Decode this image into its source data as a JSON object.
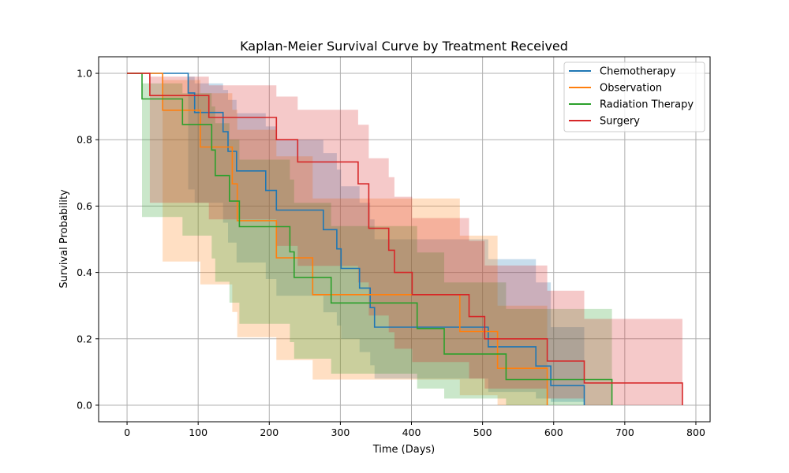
{
  "chart_data": {
    "type": "line",
    "subtype": "kaplan-meier-step",
    "title": "Kaplan-Meier Survival Curve by Treatment Received",
    "xlabel": "Time (Days)",
    "ylabel": "Survival Probability",
    "xlim": [
      -40,
      820
    ],
    "ylim": [
      -0.05,
      1.05
    ],
    "xticks": [
      0,
      100,
      200,
      300,
      400,
      500,
      600,
      700,
      800
    ],
    "xtick_labels": [
      "0",
      "100",
      "200",
      "300",
      "400",
      "500",
      "600",
      "700",
      "800"
    ],
    "yticks": [
      0.0,
      0.2,
      0.4,
      0.6,
      0.8,
      1.0
    ],
    "ytick_labels": [
      "0.0",
      "0.2",
      "0.4",
      "0.6",
      "0.8",
      "1.0"
    ],
    "grid": true,
    "legend_position": "top-right",
    "series": [
      {
        "name": "Chemotherapy",
        "color": "#1f77b4",
        "times": [
          0,
          86,
          95,
          135,
          142,
          154,
          195,
          210,
          276,
          295,
          301,
          327,
          342,
          348,
          508,
          575,
          596,
          643
        ],
        "survival": [
          1.0,
          0.941,
          0.882,
          0.824,
          0.765,
          0.706,
          0.647,
          0.588,
          0.529,
          0.471,
          0.412,
          0.353,
          0.294,
          0.235,
          0.176,
          0.118,
          0.059,
          0.0
        ],
        "ci_upper": [
          1.0,
          0.99,
          0.97,
          0.95,
          0.92,
          0.88,
          0.84,
          0.8,
          0.76,
          0.71,
          0.66,
          0.61,
          0.56,
          0.5,
          0.44,
          0.37,
          0.235,
          0.235
        ],
        "ci_lower": [
          1.0,
          0.65,
          0.61,
          0.55,
          0.49,
          0.43,
          0.38,
          0.33,
          0.28,
          0.24,
          0.2,
          0.16,
          0.12,
          0.08,
          0.04,
          0.02,
          0.01,
          0.01
        ]
      },
      {
        "name": "Observation",
        "color": "#ff7f0e",
        "times": [
          0,
          50,
          103,
          148,
          155,
          210,
          261,
          468,
          521,
          591
        ],
        "survival": [
          1.0,
          0.889,
          0.778,
          0.667,
          0.556,
          0.444,
          0.333,
          0.222,
          0.111,
          0.0
        ],
        "ci_upper": [
          1.0,
          0.98,
          0.94,
          0.89,
          0.83,
          0.75,
          0.623,
          0.511,
          0.3,
          0.3
        ],
        "ci_lower": [
          1.0,
          0.433,
          0.364,
          0.281,
          0.205,
          0.136,
          0.077,
          0.03,
          0.0,
          0.0
        ]
      },
      {
        "name": "Radiation Therapy",
        "color": "#2ca02c",
        "times": [
          0,
          21,
          78,
          119,
          124,
          144,
          158,
          229,
          235,
          287,
          408,
          446,
          533,
          682
        ],
        "survival": [
          1.0,
          0.923,
          0.846,
          0.769,
          0.692,
          0.615,
          0.538,
          0.462,
          0.385,
          0.308,
          0.231,
          0.154,
          0.077,
          0.0
        ],
        "ci_upper": [
          1.0,
          0.97,
          0.94,
          0.9,
          0.85,
          0.8,
          0.74,
          0.68,
          0.61,
          0.54,
          0.46,
          0.37,
          0.29,
          0.29
        ],
        "ci_lower": [
          1.0,
          0.567,
          0.511,
          0.442,
          0.372,
          0.309,
          0.245,
          0.19,
          0.14,
          0.095,
          0.05,
          0.02,
          0.0,
          0.0
        ]
      },
      {
        "name": "Surgery",
        "color": "#d62728",
        "times": [
          0,
          32,
          115,
          210,
          240,
          325,
          340,
          368,
          376,
          401,
          481,
          503,
          591,
          643,
          781
        ],
        "survival": [
          1.0,
          0.933,
          0.867,
          0.8,
          0.733,
          0.667,
          0.533,
          0.467,
          0.4,
          0.333,
          0.267,
          0.2,
          0.133,
          0.067,
          0.0
        ],
        "ci_upper": [
          1.0,
          0.99,
          0.964,
          0.93,
          0.89,
          0.845,
          0.744,
          0.687,
          0.628,
          0.564,
          0.495,
          0.421,
          0.345,
          0.26,
          0.26
        ],
        "ci_lower": [
          1.0,
          0.61,
          0.56,
          0.48,
          0.42,
          0.37,
          0.27,
          0.22,
          0.17,
          0.13,
          0.08,
          0.05,
          0.02,
          0.0,
          0.0
        ]
      }
    ]
  }
}
